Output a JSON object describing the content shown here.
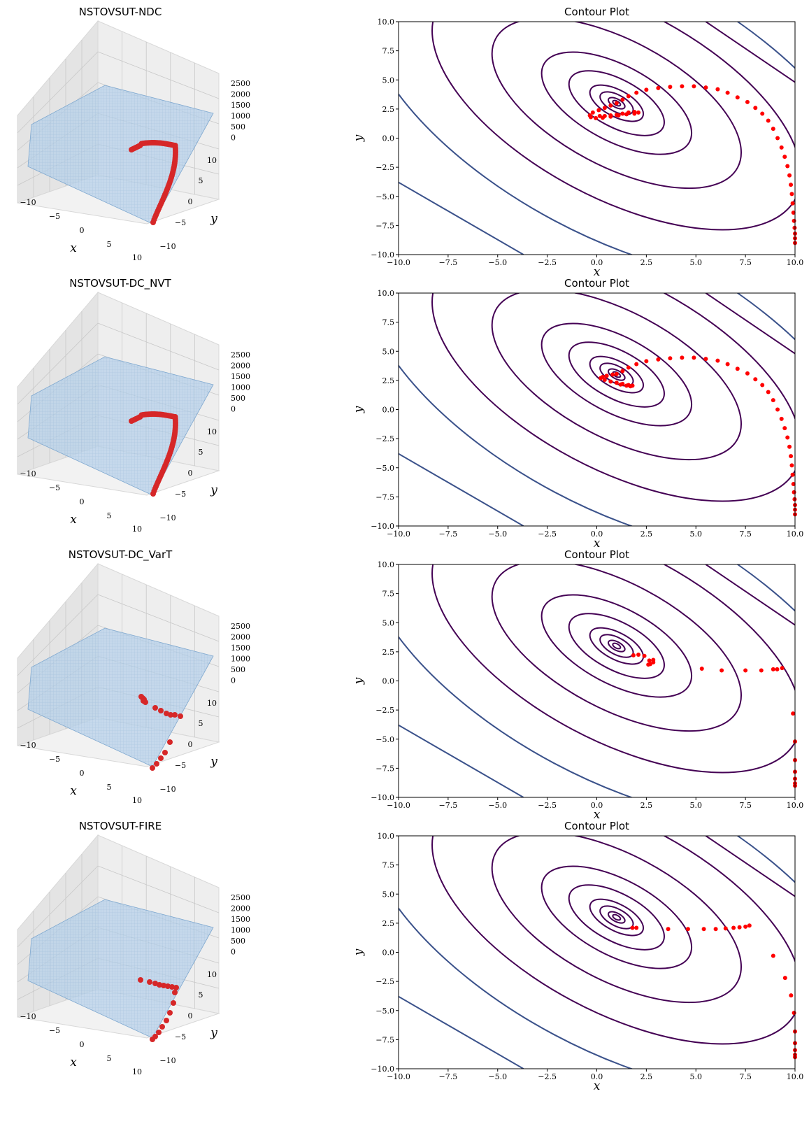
{
  "colors": {
    "trajectory": "#ff0000",
    "trajectory_3d": "#d62728",
    "surface": "#a9c8e6",
    "surface_line": "#7fa8cf",
    "contour_inner": "#440154",
    "contour_outer": "#3b528b",
    "pane": "#eeeeee",
    "grid": "#c8c8c8"
  },
  "chart_data": [
    {
      "type": "surface3d",
      "title": "NSTOVSUT-NDC",
      "xlabel": "x",
      "ylabel": "y",
      "xticks": [
        "−10",
        "−5",
        "0",
        "5",
        "10"
      ],
      "yticks": [
        "10",
        "5",
        "0",
        "−5",
        "−10"
      ],
      "zticks": [
        "2500",
        "2000",
        "1500",
        "1000",
        "500",
        "0"
      ],
      "trajectory_style": "dense"
    },
    {
      "type": "line",
      "title": "Contour Plot",
      "xlabel": "x",
      "ylabel": "y",
      "xlim": [
        -10,
        10
      ],
      "ylim": [
        -10,
        10
      ],
      "xticks": [
        "−10.0",
        "−7.5",
        "−5.0",
        "−2.5",
        "0.0",
        "2.5",
        "5.0",
        "7.5",
        "10.0"
      ],
      "yticks": [
        "10.0",
        "7.5",
        "5.0",
        "2.5",
        "0.0",
        "−2.5",
        "−5.0",
        "−7.5",
        "−10.0"
      ],
      "points": [
        [
          10,
          -9
        ],
        [
          10,
          -8.6
        ],
        [
          10,
          -8.2
        ],
        [
          9.98,
          -7.7
        ],
        [
          9.95,
          -7.1
        ],
        [
          9.92,
          -6.4
        ],
        [
          9.88,
          -5.6
        ],
        [
          9.84,
          -4.8
        ],
        [
          9.79,
          -4
        ],
        [
          9.72,
          -3.2
        ],
        [
          9.62,
          -2.4
        ],
        [
          9.48,
          -1.6
        ],
        [
          9.32,
          -0.8
        ],
        [
          9.12,
          0.0
        ],
        [
          8.9,
          0.8
        ],
        [
          8.65,
          1.5
        ],
        [
          8.35,
          2.1
        ],
        [
          8.0,
          2.6
        ],
        [
          7.6,
          3.1
        ],
        [
          7.1,
          3.5
        ],
        [
          6.6,
          3.9
        ],
        [
          6.1,
          4.2
        ],
        [
          5.5,
          4.35
        ],
        [
          4.9,
          4.45
        ],
        [
          4.3,
          4.45
        ],
        [
          3.7,
          4.4
        ],
        [
          3.1,
          4.3
        ],
        [
          2.5,
          4.15
        ],
        [
          2.0,
          3.9
        ],
        [
          1.6,
          3.6
        ],
        [
          1.3,
          3.3
        ],
        [
          1.0,
          3.0
        ],
        [
          0.7,
          2.8
        ],
        [
          0.4,
          2.6
        ],
        [
          0.1,
          2.4
        ],
        [
          -0.2,
          2.2
        ],
        [
          -0.35,
          1.95
        ],
        [
          -0.3,
          1.8
        ],
        [
          -0.05,
          1.72
        ],
        [
          0.3,
          1.75
        ],
        [
          0.7,
          1.85
        ],
        [
          1.1,
          1.95
        ],
        [
          1.5,
          2.05
        ],
        [
          1.9,
          2.1
        ],
        [
          2.1,
          2.2
        ],
        [
          1.9,
          2.25
        ],
        [
          1.6,
          2.2
        ],
        [
          1.3,
          2.1
        ],
        [
          1.0,
          2.0
        ],
        [
          0.7,
          1.95
        ],
        [
          0.4,
          1.9
        ],
        [
          0.15,
          1.9
        ]
      ]
    },
    {
      "type": "surface3d",
      "title": "NSTOVSUT-DC_NVT",
      "xlabel": "x",
      "ylabel": "y",
      "xticks": [
        "−10",
        "−5",
        "0",
        "5",
        "10"
      ],
      "yticks": [
        "10",
        "5",
        "0",
        "−5",
        "−10"
      ],
      "zticks": [
        "2500",
        "2000",
        "1500",
        "1000",
        "500",
        "0"
      ],
      "trajectory_style": "dense"
    },
    {
      "type": "line",
      "title": "Contour Plot",
      "xlabel": "x",
      "ylabel": "y",
      "xlim": [
        -10,
        10
      ],
      "ylim": [
        -10,
        10
      ],
      "xticks": [
        "−10.0",
        "−7.5",
        "−5.0",
        "−2.5",
        "0.0",
        "2.5",
        "5.0",
        "7.5",
        "10.0"
      ],
      "yticks": [
        "10.0",
        "7.5",
        "5.0",
        "2.5",
        "0.0",
        "−2.5",
        "−5.0",
        "−7.5",
        "−10.0"
      ],
      "points": [
        [
          10,
          -9
        ],
        [
          10,
          -8.6
        ],
        [
          10,
          -8.2
        ],
        [
          9.98,
          -7.7
        ],
        [
          9.95,
          -7.1
        ],
        [
          9.92,
          -6.4
        ],
        [
          9.88,
          -5.6
        ],
        [
          9.84,
          -4.8
        ],
        [
          9.79,
          -4
        ],
        [
          9.72,
          -3.2
        ],
        [
          9.62,
          -2.4
        ],
        [
          9.48,
          -1.6
        ],
        [
          9.32,
          -0.8
        ],
        [
          9.12,
          0.0
        ],
        [
          8.9,
          0.8
        ],
        [
          8.65,
          1.5
        ],
        [
          8.35,
          2.1
        ],
        [
          8.0,
          2.6
        ],
        [
          7.6,
          3.1
        ],
        [
          7.1,
          3.5
        ],
        [
          6.6,
          3.9
        ],
        [
          6.1,
          4.2
        ],
        [
          5.5,
          4.35
        ],
        [
          4.9,
          4.45
        ],
        [
          4.3,
          4.45
        ],
        [
          3.7,
          4.4
        ],
        [
          3.1,
          4.3
        ],
        [
          2.5,
          4.15
        ],
        [
          2.0,
          3.9
        ],
        [
          1.6,
          3.6
        ],
        [
          1.3,
          3.3
        ],
        [
          1.0,
          3.05
        ],
        [
          0.8,
          3.0
        ],
        [
          0.5,
          2.9
        ],
        [
          0.3,
          2.8
        ],
        [
          0.2,
          2.7
        ],
        [
          0.4,
          2.55
        ],
        [
          0.7,
          2.4
        ],
        [
          1.0,
          2.3
        ],
        [
          1.3,
          2.2
        ],
        [
          1.6,
          2.1
        ],
        [
          1.8,
          2.05
        ],
        [
          1.7,
          2.0
        ],
        [
          1.5,
          2.05
        ],
        [
          1.2,
          2.15
        ]
      ]
    },
    {
      "type": "surface3d",
      "title": "NSTOVSUT-DC_VarT",
      "xlabel": "x",
      "ylabel": "y",
      "xticks": [
        "−10",
        "−5",
        "0",
        "5",
        "10"
      ],
      "yticks": [
        "10",
        "5",
        "0",
        "−5",
        "−10"
      ],
      "zticks": [
        "2500",
        "2000",
        "1500",
        "1000",
        "500",
        "0"
      ],
      "trajectory_style": "sparse"
    },
    {
      "type": "scatter",
      "title": "Contour Plot",
      "xlabel": "x",
      "ylabel": "y",
      "xlim": [
        -10,
        10
      ],
      "ylim": [
        -10,
        10
      ],
      "xticks": [
        "−10.0",
        "−7.5",
        "−5.0",
        "−2.5",
        "0.0",
        "2.5",
        "5.0",
        "7.5",
        "10.0"
      ],
      "yticks": [
        "10.0",
        "7.5",
        "5.0",
        "2.5",
        "0.0",
        "−2.5",
        "−5.0",
        "−7.5",
        "−10.0"
      ],
      "points": [
        [
          10,
          -9
        ],
        [
          10,
          -8.8
        ],
        [
          10,
          -8.4
        ],
        [
          10,
          -7.8
        ],
        [
          10,
          -6.8
        ],
        [
          10,
          -5.2
        ],
        [
          9.9,
          -2.8
        ],
        [
          9.35,
          1.1
        ],
        [
          9.1,
          1.0
        ],
        [
          8.9,
          1.0
        ],
        [
          8.3,
          0.9
        ],
        [
          7.5,
          0.9
        ],
        [
          6.3,
          0.9
        ],
        [
          5.3,
          1.05
        ],
        [
          2.85,
          1.6
        ],
        [
          2.7,
          1.45
        ],
        [
          2.6,
          1.4
        ],
        [
          2.65,
          1.75
        ],
        [
          2.85,
          1.8
        ],
        [
          2.4,
          2.15
        ],
        [
          2.1,
          2.25
        ],
        [
          1.85,
          2.2
        ]
      ]
    },
    {
      "type": "surface3d",
      "title": "NSTOVSUT-FIRE",
      "xlabel": "x",
      "ylabel": "y",
      "xticks": [
        "−10",
        "−5",
        "0",
        "5",
        "10"
      ],
      "yticks": [
        "10",
        "5",
        "0",
        "−5",
        "−10"
      ],
      "zticks": [
        "2500",
        "2000",
        "1500",
        "1000",
        "500",
        "0"
      ],
      "trajectory_style": "fire"
    },
    {
      "type": "scatter",
      "title": "Contour Plot",
      "xlabel": "x",
      "ylabel": "y",
      "xlim": [
        -10,
        10
      ],
      "ylim": [
        -10,
        10
      ],
      "xticks": [
        "−10.0",
        "−7.5",
        "−5.0",
        "−2.5",
        "0.0",
        "2.5",
        "5.0",
        "7.5",
        "10.0"
      ],
      "yticks": [
        "10.0",
        "7.5",
        "5.0",
        "2.5",
        "0.0",
        "−2.5",
        "−5.0",
        "−7.5",
        "−10.0"
      ],
      "points": [
        [
          10,
          -9
        ],
        [
          10,
          -8.8
        ],
        [
          10,
          -8.4
        ],
        [
          10,
          -7.8
        ],
        [
          10,
          -6.8
        ],
        [
          9.95,
          -5.2
        ],
        [
          9.8,
          -3.7
        ],
        [
          9.5,
          -2.2
        ],
        [
          8.9,
          -0.3
        ],
        [
          7.7,
          2.3
        ],
        [
          7.5,
          2.2
        ],
        [
          7.2,
          2.15
        ],
        [
          6.9,
          2.1
        ],
        [
          6.5,
          2.05
        ],
        [
          6.0,
          2.0
        ],
        [
          5.4,
          2.0
        ],
        [
          4.6,
          2.0
        ],
        [
          3.6,
          2.0
        ],
        [
          2.0,
          2.1
        ],
        [
          1.8,
          2.1
        ]
      ]
    }
  ]
}
